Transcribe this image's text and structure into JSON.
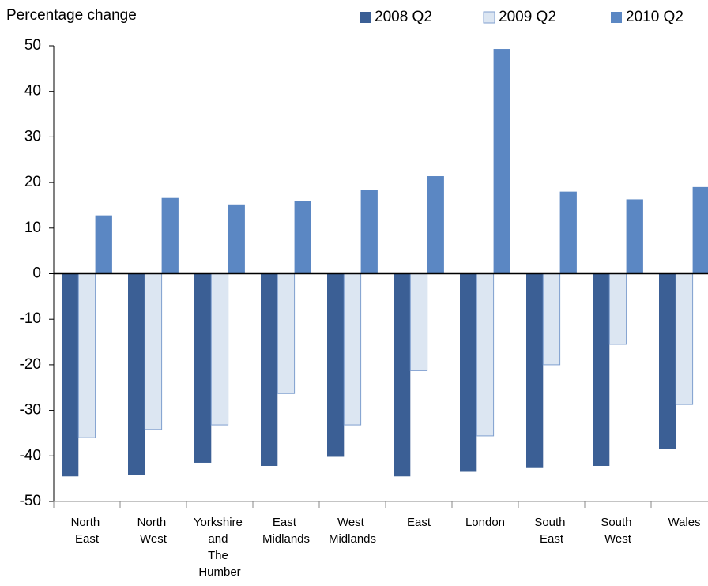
{
  "chart_data": {
    "type": "bar",
    "y_label": "Percentage change",
    "categories": [
      "North East",
      "North West",
      "Yorkshire and The Humber",
      "East Midlands",
      "West Midlands",
      "East",
      "London",
      "South East",
      "South West",
      "Wales"
    ],
    "series": [
      {
        "name": "2008 Q2",
        "color": "#3b5f95",
        "values": [
          -44.5,
          -44.2,
          -41.5,
          -42.2,
          -40.2,
          -44.5,
          -43.5,
          -42.5,
          -42.2,
          -38.5
        ]
      },
      {
        "name": "2009 Q2",
        "color": "#dce6f2",
        "values": [
          -36,
          -34.2,
          -33.2,
          -26.3,
          -33.2,
          -21.3,
          -35.6,
          -20,
          -15.5,
          -28.7
        ]
      },
      {
        "name": "2010 Q2",
        "color": "#5b87c3",
        "values": [
          12.8,
          16.6,
          15.2,
          15.9,
          18.3,
          21.4,
          49.3,
          18,
          16.3,
          19
        ]
      }
    ],
    "ylim": [
      -50,
      50
    ],
    "yticks": [
      -50,
      -40,
      -30,
      -20,
      -10,
      0,
      10,
      20,
      30,
      40,
      50
    ]
  }
}
